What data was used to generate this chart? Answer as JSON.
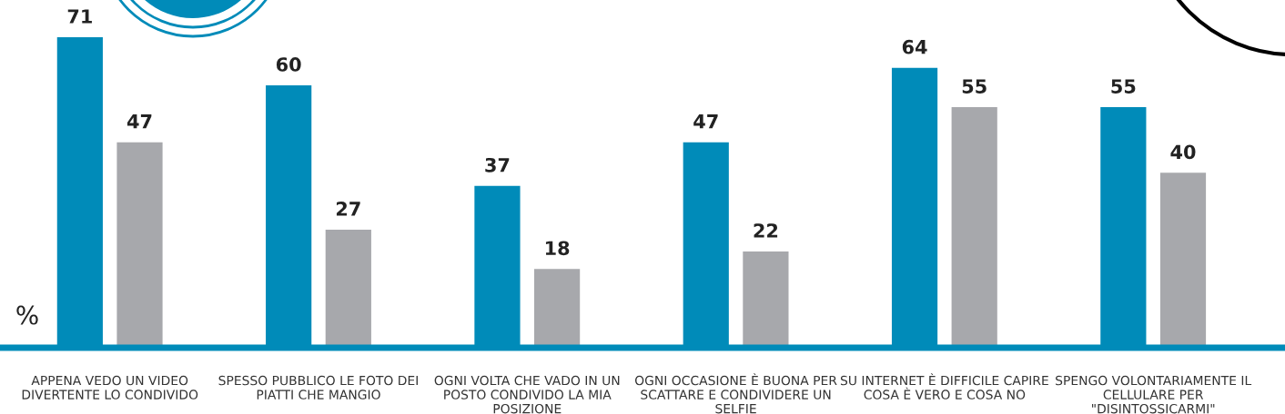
{
  "chart_data": {
    "type": "bar",
    "ylabel": "%",
    "categories": [
      "APPENA VEDO UN VIDEO\nDIVERTENTE LO CONDIVIDO",
      "SPESSO PUBBLICO LE FOTO DEI\nPIATTI CHE MANGIO",
      "OGNI VOLTA CHE VADO IN UN\nPOSTO CONDIVIDO LA MIA\nPOSIZIONE",
      "OGNI OCCASIONE È BUONA PER\nSCATTARE E CONDIVIDERE UN\nSELFIE",
      "SU INTERNET È DIFFICILE CAPIRE\nCOSA È VERO E COSA NO",
      "SPENGO VOLONTARIAMENTE IL\nCELLULARE PER\n\"DISINTOSSICARMI\""
    ],
    "series": [
      {
        "color": "#008bb9",
        "values": [
          71,
          60,
          37,
          47,
          64,
          55
        ]
      },
      {
        "color": "#a7a8ac",
        "values": [
          47,
          27,
          18,
          22,
          55,
          40
        ]
      }
    ],
    "data_labels": true,
    "tick_labels": "x",
    "grid": false,
    "legend": false
  }
}
